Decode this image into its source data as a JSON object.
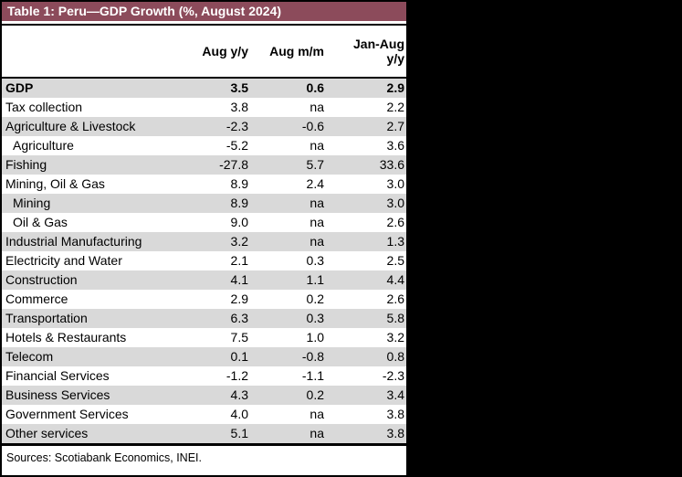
{
  "colors": {
    "canvas_bg": "#000000",
    "banner_bg": "#8C4B5B",
    "banner_text": "#FFFFFF",
    "row_shade": "#D9D9D9",
    "border": "#000000",
    "text": "#000000"
  },
  "chart_data": {
    "type": "table",
    "title": "Table 1: Peru—GDP Growth (%, August 2024)",
    "columns": {
      "region": "",
      "col1": "Aug y/y",
      "col2": "Aug m/m",
      "col3": "Jan-Aug\ny/y"
    },
    "rows": [
      {
        "label": "GDP",
        "aug_yy": "3.5",
        "aug_mm": "0.6",
        "jan_aug_yy": "2.9",
        "emphasis": true
      },
      {
        "label": "Tax collection",
        "aug_yy": "3.8",
        "aug_mm": "na",
        "jan_aug_yy": "2.2"
      },
      {
        "label": "Agriculture & Livestock",
        "aug_yy": "-2.3",
        "aug_mm": "-0.6",
        "jan_aug_yy": "2.7"
      },
      {
        "label": "Agriculture",
        "aug_yy": "-5.2",
        "aug_mm": "na",
        "jan_aug_yy": "3.6",
        "sub": true
      },
      {
        "label": "Fishing",
        "aug_yy": "-27.8",
        "aug_mm": "5.7",
        "jan_aug_yy": "33.6"
      },
      {
        "label": "Mining, Oil & Gas",
        "aug_yy": "8.9",
        "aug_mm": "2.4",
        "jan_aug_yy": "3.0"
      },
      {
        "label": "Mining",
        "aug_yy": "8.9",
        "aug_mm": "na",
        "jan_aug_yy": "3.0",
        "sub": true
      },
      {
        "label": "Oil & Gas",
        "aug_yy": "9.0",
        "aug_mm": "na",
        "jan_aug_yy": "2.6",
        "sub": true
      },
      {
        "label": "Industrial Manufacturing",
        "aug_yy": "3.2",
        "aug_mm": "na",
        "jan_aug_yy": "1.3"
      },
      {
        "label": "Electricity and Water",
        "aug_yy": "2.1",
        "aug_mm": "0.3",
        "jan_aug_yy": "2.5"
      },
      {
        "label": "Construction",
        "aug_yy": "4.1",
        "aug_mm": "1.1",
        "jan_aug_yy": "4.4"
      },
      {
        "label": "Commerce",
        "aug_yy": "2.9",
        "aug_mm": "0.2",
        "jan_aug_yy": "2.6"
      },
      {
        "label": "Transportation",
        "aug_yy": "6.3",
        "aug_mm": "0.3",
        "jan_aug_yy": "5.8"
      },
      {
        "label": "Hotels & Restaurants",
        "aug_yy": "7.5",
        "aug_mm": "1.0",
        "jan_aug_yy": "3.2"
      },
      {
        "label": "Telecom",
        "aug_yy": "0.1",
        "aug_mm": "-0.8",
        "jan_aug_yy": "0.8"
      },
      {
        "label": "Financial Services",
        "aug_yy": "-1.2",
        "aug_mm": "-1.1",
        "jan_aug_yy": "-2.3"
      },
      {
        "label": "Business Services",
        "aug_yy": "4.3",
        "aug_mm": "0.2",
        "jan_aug_yy": "3.4"
      },
      {
        "label": "Government Services",
        "aug_yy": "4.0",
        "aug_mm": "na",
        "jan_aug_yy": "3.8"
      },
      {
        "label": "Other services",
        "aug_yy": "5.1",
        "aug_mm": "na",
        "jan_aug_yy": "3.8"
      }
    ],
    "source": "Sources: Scotiabank Economics, INEI."
  }
}
